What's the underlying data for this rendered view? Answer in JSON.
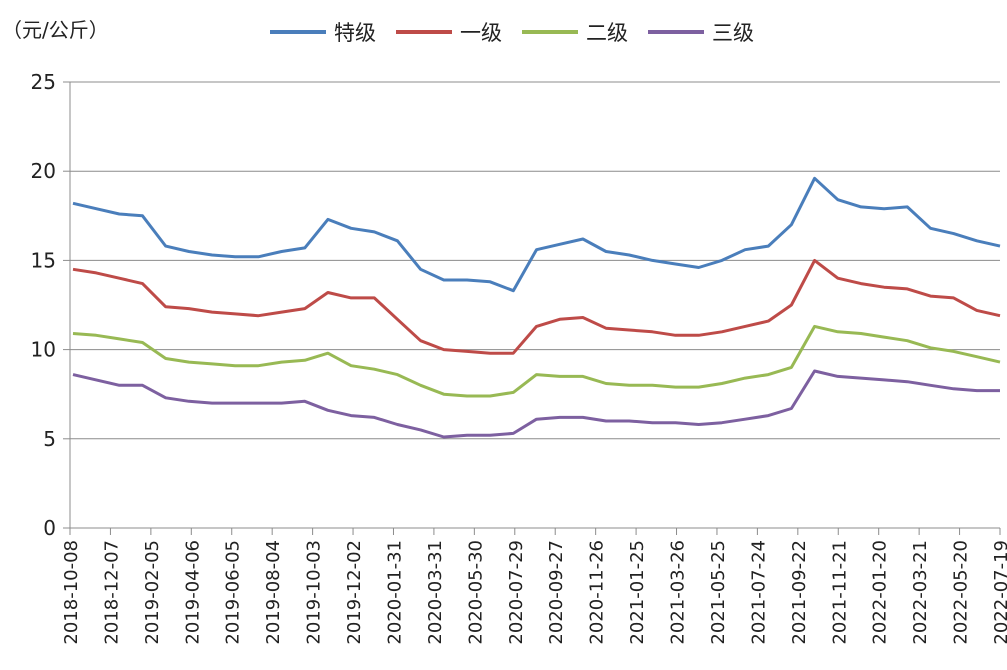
{
  "chart_data": {
    "type": "line",
    "y_unit_label": "（元/公斤）",
    "ylim": [
      0,
      25
    ],
    "y_ticks": [
      "0",
      "5",
      "10",
      "15",
      "20",
      "25"
    ],
    "grid": "horizontal",
    "legend_position": "top",
    "x_ticks": [
      "2018-10-08",
      "2018-12-07",
      "2019-02-05",
      "2019-04-06",
      "2019-06-05",
      "2019-08-04",
      "2019-10-03",
      "2019-12-02",
      "2020-01-31",
      "2020-03-31",
      "2020-05-30",
      "2020-07-29",
      "2020-09-27",
      "2020-11-26",
      "2021-01-25",
      "2021-03-26",
      "2021-05-25",
      "2021-07-24",
      "2021-09-22",
      "2021-11-21",
      "2022-01-20",
      "2022-03-21",
      "2022-05-20",
      "2022-07-19"
    ],
    "series": [
      {
        "name": "特级",
        "color": "#4a7ebb",
        "values": [
          18.2,
          17.9,
          17.6,
          17.5,
          15.8,
          15.5,
          15.3,
          15.2,
          15.2,
          15.5,
          15.7,
          17.3,
          16.8,
          16.6,
          16.1,
          14.5,
          13.9,
          13.9,
          13.8,
          13.3,
          15.6,
          15.9,
          16.2,
          15.5,
          15.3,
          15.0,
          14.8,
          14.6,
          15.0,
          15.6,
          15.8,
          17.0,
          19.6,
          18.4,
          18.0,
          17.9,
          18.0,
          16.8,
          16.5,
          16.1,
          15.8
        ]
      },
      {
        "name": "一级",
        "color": "#be4b48",
        "values": [
          14.5,
          14.3,
          14.0,
          13.7,
          12.4,
          12.3,
          12.1,
          12.0,
          11.9,
          12.1,
          12.3,
          13.2,
          12.9,
          12.9,
          11.7,
          10.5,
          10.0,
          9.9,
          9.8,
          9.8,
          11.3,
          11.7,
          11.8,
          11.2,
          11.1,
          11.0,
          10.8,
          10.8,
          11.0,
          11.3,
          11.6,
          12.5,
          15.0,
          14.0,
          13.7,
          13.5,
          13.4,
          13.0,
          12.9,
          12.2,
          11.9
        ]
      },
      {
        "name": "二级",
        "color": "#98b954",
        "values": [
          10.9,
          10.8,
          10.6,
          10.4,
          9.5,
          9.3,
          9.2,
          9.1,
          9.1,
          9.3,
          9.4,
          9.8,
          9.1,
          8.9,
          8.6,
          8.0,
          7.5,
          7.4,
          7.4,
          7.6,
          8.6,
          8.5,
          8.5,
          8.1,
          8.0,
          8.0,
          7.9,
          7.9,
          8.1,
          8.4,
          8.6,
          9.0,
          11.3,
          11.0,
          10.9,
          10.7,
          10.5,
          10.1,
          9.9,
          9.6,
          9.3
        ]
      },
      {
        "name": "三级",
        "color": "#7d60a0",
        "values": [
          8.6,
          8.3,
          8.0,
          8.0,
          7.3,
          7.1,
          7.0,
          7.0,
          7.0,
          7.0,
          7.1,
          6.6,
          6.3,
          6.2,
          5.8,
          5.5,
          5.1,
          5.2,
          5.2,
          5.3,
          6.1,
          6.2,
          6.2,
          6.0,
          6.0,
          5.9,
          5.9,
          5.8,
          5.9,
          6.1,
          6.3,
          6.7,
          8.8,
          8.5,
          8.4,
          8.3,
          8.2,
          8.0,
          7.8,
          7.7,
          7.7
        ]
      }
    ]
  }
}
